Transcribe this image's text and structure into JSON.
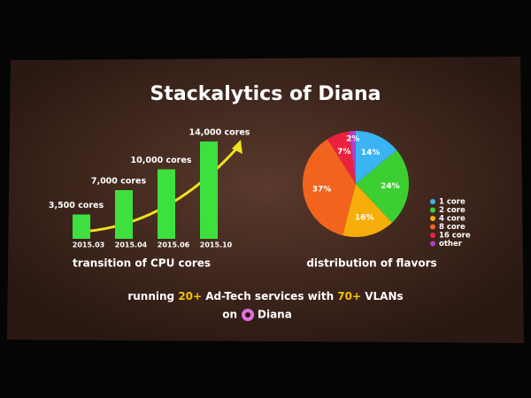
{
  "slide": {
    "title": "Stackalytics of Diana",
    "footer": {
      "line1": [
        "running ",
        "20+",
        " Ad-Tech services with ",
        "70+",
        " VLANs"
      ],
      "line2": [
        "on ",
        "Diana"
      ]
    }
  },
  "chart_data": [
    {
      "type": "bar",
      "title": "transition of CPU cores",
      "categories": [
        "2015.03",
        "2015.04",
        "2015.06",
        "2015.10"
      ],
      "values": [
        3500,
        7000,
        10000,
        14000
      ],
      "value_labels": [
        "3,500 cores",
        "7,000 cores",
        "10,000 cores",
        "14,000 cores"
      ],
      "color": "#3ee03e",
      "ylim": [
        0,
        14000
      ]
    },
    {
      "type": "pie",
      "title": "distribution of flavors",
      "categories": [
        "1 core",
        "2 core",
        "4 core",
        "8 core",
        "16 core",
        "other"
      ],
      "values": [
        14,
        24,
        16,
        37,
        7,
        2
      ],
      "value_labels": [
        "14%",
        "24%",
        "16%",
        "37%",
        "7%",
        "2%"
      ],
      "colors": [
        "#3ab4f2",
        "#3ccf32",
        "#f7ad0a",
        "#f2641e",
        "#ea2240",
        "#b040c8"
      ]
    }
  ]
}
